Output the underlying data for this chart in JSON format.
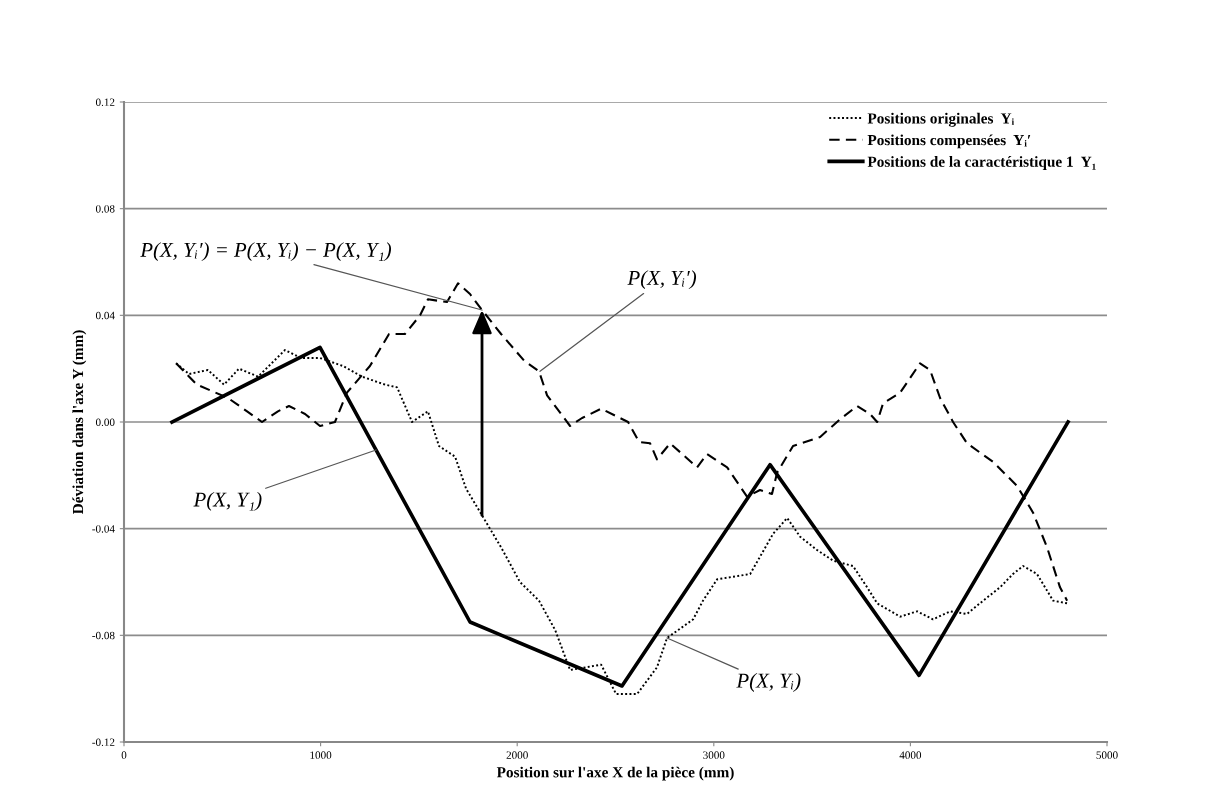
{
  "chart_data": {
    "type": "line",
    "xlabel": "Position sur l'axe X de la pièce (mm)",
    "ylabel": "Déviation dans l'axe Y (mm)",
    "xlim": [
      0,
      5000
    ],
    "xticks": [
      0,
      1000,
      2000,
      3000,
      4000,
      5000
    ],
    "ylim": [
      -0.12,
      0.12
    ],
    "yticks": [
      {
        "value": -0.12,
        "label": "-0.12"
      },
      {
        "value": -0.08,
        "label": "-0.08"
      },
      {
        "value": -0.04,
        "label": "-0.04"
      },
      {
        "value": 0,
        "label": "0.00"
      },
      {
        "value": 0.04,
        "label": "0.04"
      },
      {
        "value": 0.08,
        "label": "0.08"
      },
      {
        "value": 0.12,
        "label": "0.12"
      }
    ],
    "grid": "y",
    "legend": "top right",
    "marker": "none",
    "series": [
      {
        "name": "Positions originales  Yᵢ",
        "color": "#000000",
        "line_style": "dotted",
        "x": [
          265,
          331,
          427,
          509,
          585,
          682,
          819,
          900,
          997,
          1114,
          1211,
          1328,
          1389,
          1465,
          1546,
          1602,
          1684,
          1740,
          1821,
          1918,
          2014,
          2111,
          2193,
          2269,
          2427,
          2503,
          2610,
          2711,
          2762,
          2895,
          2945,
          3017,
          3185,
          3301,
          3373,
          3439,
          3525,
          3607,
          3708,
          3780,
          3831,
          3948,
          4034,
          4115,
          4202,
          4288,
          4370,
          4456,
          4522,
          4573,
          4644,
          4726,
          4797
        ],
        "values": [
          0.022,
          0.018,
          0.0195,
          0.014,
          0.02,
          0.017,
          0.027,
          0.024,
          0.024,
          0.021,
          0.017,
          0.014,
          0.013,
          0.0,
          0.004,
          -0.009,
          -0.013,
          -0.025,
          -0.035,
          -0.047,
          -0.06,
          -0.067,
          -0.078,
          -0.093,
          -0.091,
          -0.102,
          -0.102,
          -0.092,
          -0.081,
          -0.074,
          -0.067,
          -0.059,
          -0.057,
          -0.042,
          -0.036,
          -0.043,
          -0.048,
          -0.052,
          -0.054,
          -0.062,
          -0.068,
          -0.073,
          -0.071,
          -0.074,
          -0.071,
          -0.072,
          -0.067,
          -0.062,
          -0.057,
          -0.054,
          -0.057,
          -0.067,
          -0.068
        ]
      },
      {
        "name": "Positions compensées  Yᵢ′",
        "color": "#000000",
        "line_style": "dashed",
        "x": [
          265,
          371,
          529,
          626,
          702,
          783,
          839,
          921,
          997,
          1073,
          1134,
          1251,
          1348,
          1429,
          1506,
          1546,
          1643,
          1699,
          1760,
          1821,
          1918,
          2035,
          2111,
          2152,
          2269,
          2330,
          2427,
          2564,
          2620,
          2676,
          2711,
          2778,
          2915,
          2966,
          3068,
          3169,
          3235,
          3296,
          3322,
          3403,
          3541,
          3642,
          3729,
          3795,
          3831,
          3861,
          3948,
          4049,
          4100,
          4151,
          4217,
          4288,
          4421,
          4543,
          4624,
          4695,
          4761,
          4797
        ],
        "values": [
          0.022,
          0.014,
          0.009,
          0.004,
          0.0,
          0.004,
          0.006,
          0.003,
          -0.0015,
          0.0,
          0.011,
          0.021,
          0.033,
          0.033,
          0.04,
          0.046,
          0.045,
          0.052,
          0.048,
          0.042,
          0.033,
          0.023,
          0.019,
          0.01,
          -0.0015,
          0.0015,
          0.005,
          0.0,
          -0.0075,
          -0.008,
          -0.014,
          -0.008,
          -0.017,
          -0.012,
          -0.017,
          -0.028,
          -0.0255,
          -0.027,
          -0.019,
          -0.009,
          -0.0056,
          0.001,
          0.006,
          0.003,
          0.0,
          0.007,
          0.011,
          0.022,
          0.0195,
          0.009,
          0.0,
          -0.008,
          -0.015,
          -0.024,
          -0.034,
          -0.047,
          -0.062,
          -0.067
        ]
      },
      {
        "name": "Positions de la caractéristique 1  Y₁",
        "color": "#000000",
        "line_style": "solid",
        "x": [
          244,
          997,
          1760,
          2533,
          3286,
          4044,
          4802
        ],
        "values": [
          0,
          0.028,
          -0.075,
          -0.099,
          -0.016,
          -0.095,
          0
        ]
      }
    ],
    "annotations": [
      {
        "text": "P(X, Yᵢ′) = P(X, Yᵢ) − P(X, Y₁)",
        "x": 1821,
        "y": 0.042
      },
      {
        "text": "P(X, Yᵢ′)",
        "x": 2116,
        "y": 0.019
      },
      {
        "text": "P(X, Y₁)",
        "x": 1282,
        "y": -0.0105
      },
      {
        "text": "P(X, Yᵢ)",
        "x": 2762,
        "y": -0.081
      }
    ]
  }
}
